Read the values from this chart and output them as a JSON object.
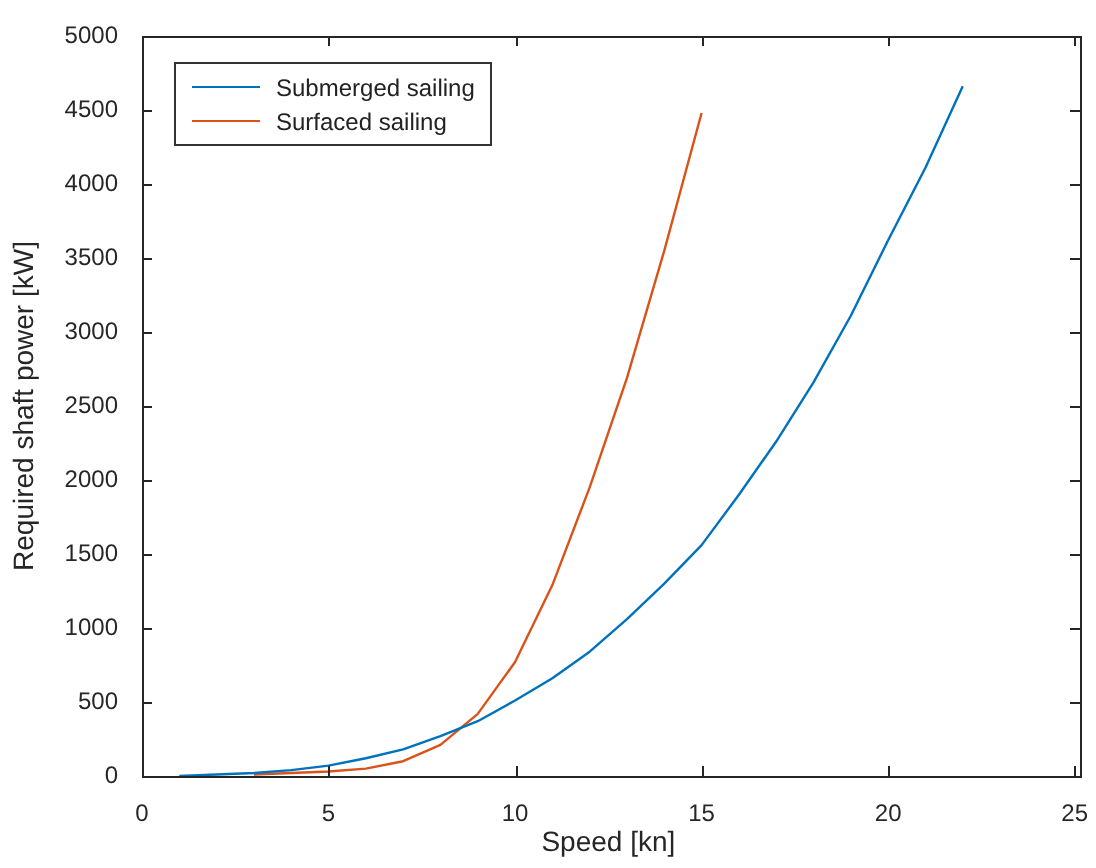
{
  "chart_data": {
    "type": "line",
    "xlabel": "Speed [kn]",
    "ylabel": "Required shaft power [kW]",
    "xlim": [
      0,
      25
    ],
    "xticks": [
      0,
      5,
      10,
      15,
      20,
      25
    ],
    "ylim": [
      0,
      5000
    ],
    "yticks": [
      0,
      500,
      1000,
      1500,
      2000,
      2500,
      3000,
      3500,
      4000,
      4500,
      5000
    ],
    "grid": false,
    "legend": "top left",
    "marker": "none",
    "line_style": "solid",
    "series": [
      {
        "name": "Submerged sailing",
        "color": "#0072bd",
        "x": [
          1,
          2,
          3,
          4,
          5,
          6,
          7,
          8,
          9,
          10,
          11,
          12,
          13,
          14,
          15,
          16,
          17,
          18,
          19,
          20,
          21,
          22
        ],
        "values": [
          0,
          10,
          20,
          40,
          70,
          120,
          180,
          270,
          370,
          510,
          660,
          840,
          1060,
          1300,
          1560,
          1900,
          2260,
          2660,
          3110,
          3620,
          4110,
          4660
        ]
      },
      {
        "name": "Surfaced sailing",
        "color": "#d95319",
        "x": [
          3,
          4,
          5,
          6,
          7,
          8,
          9,
          10,
          11,
          12,
          13,
          14,
          15
        ],
        "values": [
          10,
          20,
          30,
          50,
          100,
          210,
          420,
          770,
          1290,
          1950,
          2690,
          3550,
          4480
        ]
      }
    ]
  }
}
